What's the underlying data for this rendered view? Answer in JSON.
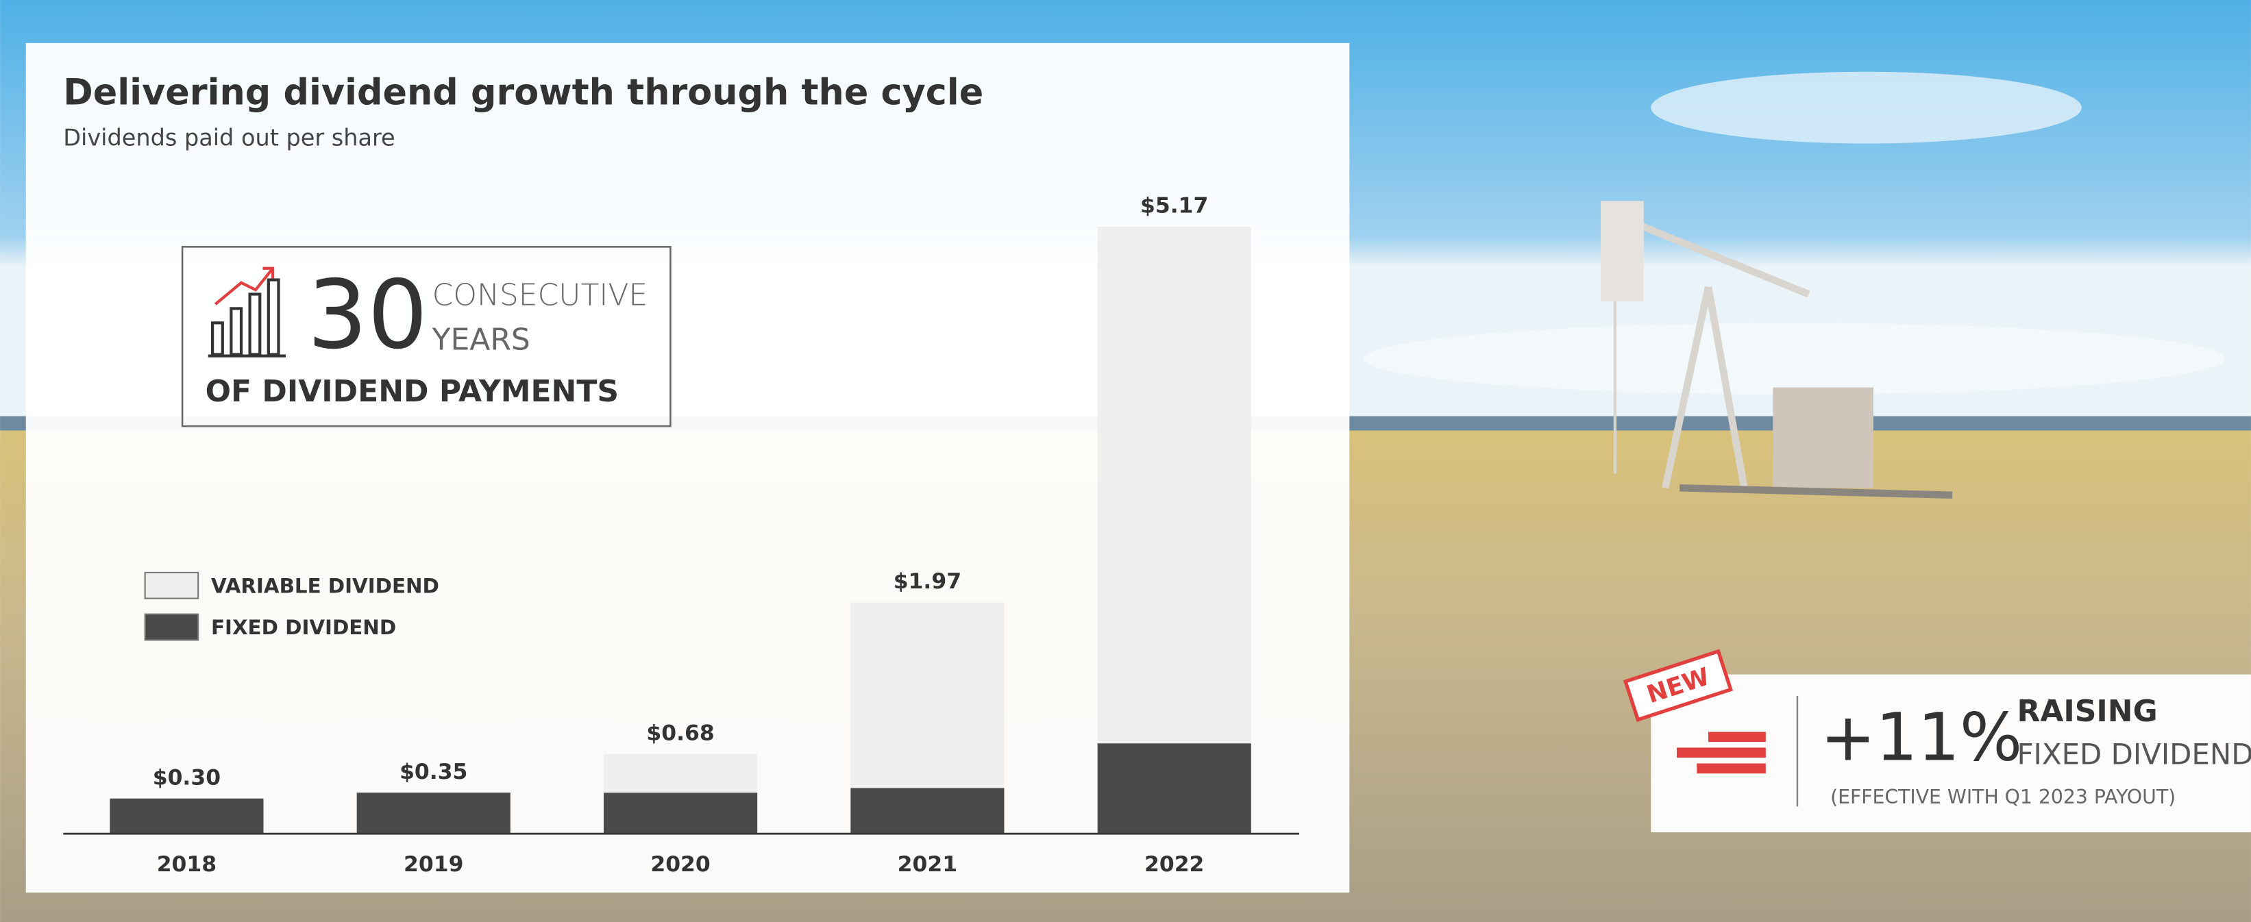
{
  "chart_data": {
    "type": "bar",
    "stacked": true,
    "title": "Delivering dividend growth through the cycle",
    "subtitle": "Dividends paid out per share",
    "categories": [
      "2018",
      "2019",
      "2020",
      "2021",
      "2022"
    ],
    "series": [
      {
        "name": "FIXED DIVIDEND",
        "color": "#4a4a4a",
        "values": [
          0.3,
          0.35,
          0.35,
          0.39,
          0.77
        ]
      },
      {
        "name": "VARIABLE DIVIDEND",
        "color": "#efefef",
        "values": [
          0,
          0,
          0.33,
          1.58,
          4.4
        ]
      }
    ],
    "totals": {
      "values": [
        0.3,
        0.35,
        0.68,
        1.97,
        5.17
      ],
      "value_labels": [
        "$0.30",
        "$0.35",
        "$0.68",
        "$1.97",
        "$5.17"
      ]
    }
  },
  "callout": {
    "number": "30",
    "line1": "CONSECUTIVE",
    "line2": "YEARS",
    "line3": "OF DIVIDEND PAYMENTS"
  },
  "badge": {
    "tag": "NEW",
    "figure": "+11%",
    "line1": "RAISING",
    "line2": "FIXED DIVIDEND",
    "note": "(EFFECTIVE WITH Q1 2023 PAYOUT)"
  }
}
